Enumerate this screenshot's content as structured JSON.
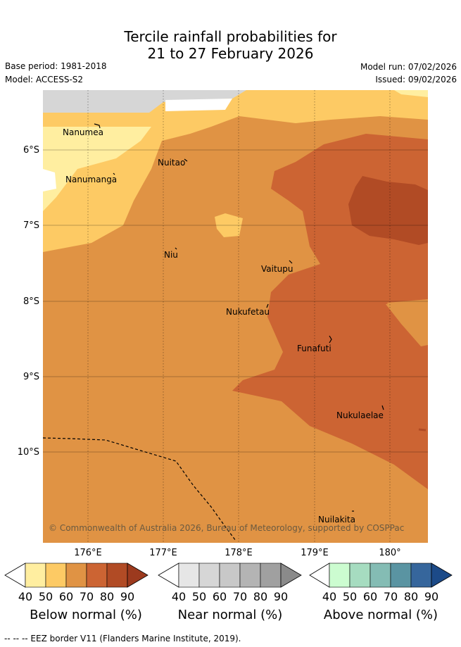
{
  "title": {
    "line1": "Tercile rainfall probabilities for",
    "line2": "21 to 27 February 2026"
  },
  "meta": {
    "base_period": "Base period: 1981-2018",
    "model": "Model: ACCESS-S2",
    "model_run": "Model run: 07/02/2026",
    "issued": "Issued: 09/02/2026"
  },
  "axes": {
    "lat_labels": [
      "6°S",
      "7°S",
      "8°S",
      "9°S",
      "10°S"
    ],
    "lon_labels": [
      "176°E",
      "177°E",
      "178°E",
      "179°E",
      "180°"
    ]
  },
  "places": {
    "nanumea": "Nanumea",
    "nuitao": "Nuitao",
    "nanumanga": "Nanumanga",
    "niu": "Niu",
    "vaitupu": "Vaitupu",
    "nukufetau": "Nukufetau",
    "funafuti": "Funafuti",
    "nukulaelae": "Nukulaelae",
    "nuilakita": "Nuilakita"
  },
  "copyright": "© Commonwealth of Australia 2026, Bureau of Meteorology, supported by COSPPac",
  "colorbars": {
    "below": {
      "title": "Below normal (%)",
      "ticks": [
        "40",
        "50",
        "60",
        "70",
        "80",
        "90"
      ],
      "colors": [
        "#ffeea0",
        "#fdca64",
        "#e09344",
        "#cc6433",
        "#b14b25",
        "#9c3a1e"
      ]
    },
    "near": {
      "title": "Near normal (%)",
      "ticks": [
        "40",
        "50",
        "60",
        "70",
        "80",
        "90"
      ],
      "colors": [
        "#e6e6e6",
        "#d6d6d6",
        "#c8c8c8",
        "#b4b4b4",
        "#a0a0a0",
        "#8a8a8a"
      ]
    },
    "above": {
      "title": "Above normal (%)",
      "ticks": [
        "40",
        "50",
        "60",
        "70",
        "80",
        "90"
      ],
      "colors": [
        "#ccfcd0",
        "#a6dcc0",
        "#84bcb4",
        "#5a94a2",
        "#36669c",
        "#1c4a88"
      ]
    }
  },
  "footer": "-- -- -- EEZ border V11 (Flanders Marine Institute, 2019)."
}
